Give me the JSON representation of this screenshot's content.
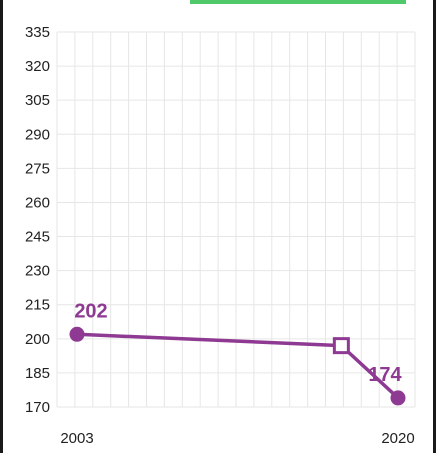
{
  "colors": {
    "series": "#8e3a93",
    "grid": "#e6e6e6",
    "accent": "#4fc96a"
  },
  "chart_data": {
    "type": "line",
    "title": "",
    "xlabel": "",
    "ylabel": "",
    "x_tick_labels": [
      "2003",
      "2020"
    ],
    "y_ticks": [
      170,
      185,
      200,
      215,
      230,
      245,
      260,
      275,
      290,
      305,
      320,
      335
    ],
    "y_tick_labels": [
      "170",
      "185",
      "200",
      "215",
      "230",
      "245",
      "260",
      "275",
      "290",
      "305",
      "320",
      "335"
    ],
    "ylim": [
      170,
      335
    ],
    "xlim": [
      2003,
      2020
    ],
    "grid": true,
    "series": [
      {
        "points": [
          {
            "x": 2003,
            "y": 202,
            "marker": "circle",
            "label": "202"
          },
          {
            "x": 2017,
            "y": 197,
            "marker": "square-open",
            "label": ""
          },
          {
            "x": 2020,
            "y": 174,
            "marker": "circle",
            "label": "174"
          }
        ]
      }
    ]
  }
}
